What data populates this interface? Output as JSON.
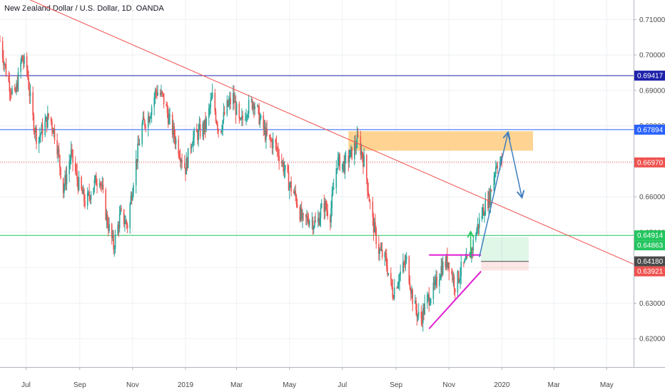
{
  "header": {
    "title": "New Zealand Dollar / U.S. Dollar, 1D, OANDA"
  },
  "chart_data": {
    "type": "candlestick",
    "title": "New Zealand Dollar / U.S. Dollar, 1D, OANDA",
    "xlabel": "",
    "ylabel": "",
    "ylim": [
      0.612,
      0.7155
    ],
    "x_range": [
      "2018-06-01",
      "2020-06-01"
    ],
    "grid": true,
    "x_ticks": [
      {
        "date": "2018-07-01",
        "label": "Jul"
      },
      {
        "date": "2018-09-01",
        "label": "Sep"
      },
      {
        "date": "2018-11-01",
        "label": "Nov"
      },
      {
        "date": "2019-01-01",
        "label": "2019"
      },
      {
        "date": "2019-03-01",
        "label": "Mar"
      },
      {
        "date": "2019-05-01",
        "label": "May"
      },
      {
        "date": "2019-07-01",
        "label": "Jul"
      },
      {
        "date": "2019-09-01",
        "label": "Sep"
      },
      {
        "date": "2019-11-01",
        "label": "Nov"
      },
      {
        "date": "2020-01-01",
        "label": "2020"
      },
      {
        "date": "2020-03-01",
        "label": "Mar"
      },
      {
        "date": "2020-05-01",
        "label": "May"
      }
    ],
    "y_ticks": [
      0.62,
      0.63,
      0.64,
      0.65,
      0.66,
      0.67,
      0.68,
      0.69,
      0.7,
      0.71
    ],
    "y_tick_labels": [
      "0.62000",
      "0.63000",
      "0.64000",
      "0.65000",
      "0.66000",
      "0.67000",
      "0.68000",
      "0.69000",
      "0.70000",
      "0.71000"
    ],
    "colors": {
      "up": "#26a69a",
      "down": "#ef5350"
    },
    "price_path": [
      [
        "2018-06-01",
        0.704
      ],
      [
        "2018-06-10",
        0.693
      ],
      [
        "2018-06-18",
        0.688
      ],
      [
        "2018-06-26",
        0.699
      ],
      [
        "2018-07-02",
        0.696
      ],
      [
        "2018-07-08",
        0.683
      ],
      [
        "2018-07-14",
        0.676
      ],
      [
        "2018-07-20",
        0.679
      ],
      [
        "2018-07-28",
        0.683
      ],
      [
        "2018-08-05",
        0.676
      ],
      [
        "2018-08-13",
        0.662
      ],
      [
        "2018-08-22",
        0.672
      ],
      [
        "2018-08-30",
        0.664
      ],
      [
        "2018-09-08",
        0.658
      ],
      [
        "2018-09-16",
        0.663
      ],
      [
        "2018-09-24",
        0.666
      ],
      [
        "2018-10-02",
        0.654
      ],
      [
        "2018-10-10",
        0.646
      ],
      [
        "2018-10-18",
        0.655
      ],
      [
        "2018-10-26",
        0.652
      ],
      [
        "2018-11-03",
        0.667
      ],
      [
        "2018-11-12",
        0.68
      ],
      [
        "2018-11-20",
        0.683
      ],
      [
        "2018-11-28",
        0.69
      ],
      [
        "2018-12-06",
        0.688
      ],
      [
        "2018-12-14",
        0.681
      ],
      [
        "2018-12-22",
        0.675
      ],
      [
        "2019-01-01",
        0.668
      ],
      [
        "2019-01-08",
        0.676
      ],
      [
        "2019-01-16",
        0.678
      ],
      [
        "2019-01-24",
        0.68
      ],
      [
        "2019-02-01",
        0.688
      ],
      [
        "2019-02-09",
        0.678
      ],
      [
        "2019-02-17",
        0.685
      ],
      [
        "2019-02-25",
        0.688
      ],
      [
        "2019-03-05",
        0.68
      ],
      [
        "2019-03-13",
        0.685
      ],
      [
        "2019-03-21",
        0.687
      ],
      [
        "2019-03-29",
        0.681
      ],
      [
        "2019-04-06",
        0.676
      ],
      [
        "2019-04-14",
        0.675
      ],
      [
        "2019-04-22",
        0.67
      ],
      [
        "2019-04-30",
        0.664
      ],
      [
        "2019-05-08",
        0.66
      ],
      [
        "2019-05-16",
        0.653
      ],
      [
        "2019-05-24",
        0.654
      ],
      [
        "2019-06-01",
        0.652
      ],
      [
        "2019-06-09",
        0.658
      ],
      [
        "2019-06-17",
        0.655
      ],
      [
        "2019-06-25",
        0.67
      ],
      [
        "2019-07-03",
        0.669
      ],
      [
        "2019-07-11",
        0.672
      ],
      [
        "2019-07-19",
        0.676
      ],
      [
        "2019-07-27",
        0.669
      ],
      [
        "2019-08-04",
        0.654
      ],
      [
        "2019-08-12",
        0.645
      ],
      [
        "2019-08-20",
        0.642
      ],
      [
        "2019-08-28",
        0.633
      ],
      [
        "2019-09-05",
        0.638
      ],
      [
        "2019-09-13",
        0.642
      ],
      [
        "2019-09-21",
        0.63
      ],
      [
        "2019-09-29",
        0.625
      ],
      [
        "2019-10-07",
        0.631
      ],
      [
        "2019-10-15",
        0.634
      ],
      [
        "2019-10-23",
        0.64
      ],
      [
        "2019-10-31",
        0.642
      ],
      [
        "2019-11-08",
        0.635
      ],
      [
        "2019-11-16",
        0.64
      ],
      [
        "2019-11-24",
        0.642
      ],
      [
        "2019-12-02",
        0.65
      ],
      [
        "2019-12-10",
        0.656
      ],
      [
        "2019-12-18",
        0.66
      ],
      [
        "2019-12-26",
        0.67
      ],
      [
        "2020-01-01",
        0.6697
      ]
    ],
    "annotations": {
      "trendline": {
        "color": "#ef5350",
        "from": [
          "2018-06-22",
          0.717
        ],
        "to": [
          "2020-06-01",
          0.641
        ]
      },
      "horizontal_lines": [
        {
          "y": 0.69417,
          "label": "0.69417",
          "color": "#1e22aa"
        },
        {
          "y": 0.67894,
          "label": "0.67894",
          "color": "#2962ff"
        },
        {
          "y": 0.64914,
          "label": "0.64914",
          "color": "#22c55e"
        }
      ],
      "price_line": {
        "y": 0.6697,
        "label": "0.66970",
        "color": "#ef5350"
      },
      "resistance_zone": {
        "color": "#ffcc80",
        "x": [
          "2019-07-08",
          "2020-02-06"
        ],
        "y": [
          0.673,
          0.6785
        ]
      },
      "position_tool": {
        "x": [
          "2019-12-08",
          "2020-02-01"
        ],
        "entry": 0.6418,
        "target": 0.64863,
        "stop": 0.63921,
        "target_label": "0.64863",
        "entry_label": "0.64180",
        "stop_label": "0.63921",
        "target_color": "#22c55e",
        "entry_color": "#4a4a4a",
        "stop_color": "#ef5350"
      },
      "magenta_lines": [
        {
          "from": [
            "2019-10-09",
            0.6436
          ],
          "to": [
            "2019-12-08",
            0.6436
          ]
        },
        {
          "from": [
            "2019-10-09",
            0.6228
          ],
          "to": [
            "2019-12-08",
            0.639
          ]
        }
      ],
      "up_arrow": {
        "from": [
          "2019-11-26",
          0.643
        ],
        "to": [
          "2019-11-26",
          0.65
        ]
      },
      "blue_path": [
        {
          "from": [
            "2019-12-06",
            0.643
          ],
          "to": [
            "2020-01-08",
            0.678
          ]
        },
        {
          "from": [
            "2020-01-08",
            0.678
          ],
          "to": [
            "2020-01-24",
            0.66
          ]
        }
      ]
    }
  }
}
